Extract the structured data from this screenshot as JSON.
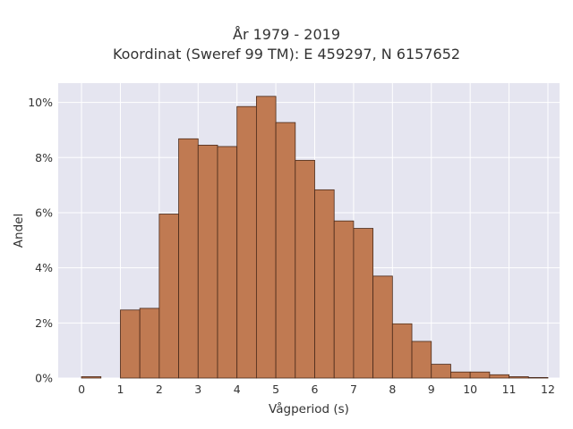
{
  "chart_data": {
    "type": "bar",
    "title": "År 1979 - 2019",
    "subtitle": "Koordinat (Sweref 99 TM): E 459297, N 6157652",
    "xlabel": "Vågperiod (s)",
    "ylabel": "Andel",
    "xlim": [
      -0.6,
      12.3
    ],
    "ylim": [
      0,
      10.7
    ],
    "x_ticks": [
      0,
      1,
      2,
      3,
      4,
      5,
      6,
      7,
      8,
      9,
      10,
      11,
      12
    ],
    "y_ticks": [
      0,
      2,
      4,
      6,
      8,
      10
    ],
    "y_tick_labels": [
      "0%",
      "2%",
      "4%",
      "6%",
      "8%",
      "10%"
    ],
    "bin_width": 0.5,
    "bins": [
      {
        "x0": 0.0,
        "value": 0.05
      },
      {
        "x0": 1.0,
        "value": 2.47
      },
      {
        "x0": 1.5,
        "value": 2.53
      },
      {
        "x0": 2.0,
        "value": 5.95
      },
      {
        "x0": 2.5,
        "value": 8.68
      },
      {
        "x0": 3.0,
        "value": 8.45
      },
      {
        "x0": 3.5,
        "value": 8.4
      },
      {
        "x0": 4.0,
        "value": 9.85
      },
      {
        "x0": 4.5,
        "value": 10.22
      },
      {
        "x0": 5.0,
        "value": 9.27
      },
      {
        "x0": 5.5,
        "value": 7.9
      },
      {
        "x0": 6.0,
        "value": 6.83
      },
      {
        "x0": 6.5,
        "value": 5.7
      },
      {
        "x0": 7.0,
        "value": 5.43
      },
      {
        "x0": 7.5,
        "value": 3.7
      },
      {
        "x0": 8.0,
        "value": 1.97
      },
      {
        "x0": 8.5,
        "value": 1.33
      },
      {
        "x0": 9.0,
        "value": 0.5
      },
      {
        "x0": 9.5,
        "value": 0.22
      },
      {
        "x0": 10.0,
        "value": 0.22
      },
      {
        "x0": 10.5,
        "value": 0.12
      },
      {
        "x0": 11.0,
        "value": 0.05
      },
      {
        "x0": 11.5,
        "value": 0.02
      }
    ],
    "grid": true,
    "colors": {
      "bar_fill": "#c07a52",
      "bar_edge": "#4a2a1a",
      "plot_background": "#e5e5f0",
      "grid": "#ffffff"
    }
  }
}
